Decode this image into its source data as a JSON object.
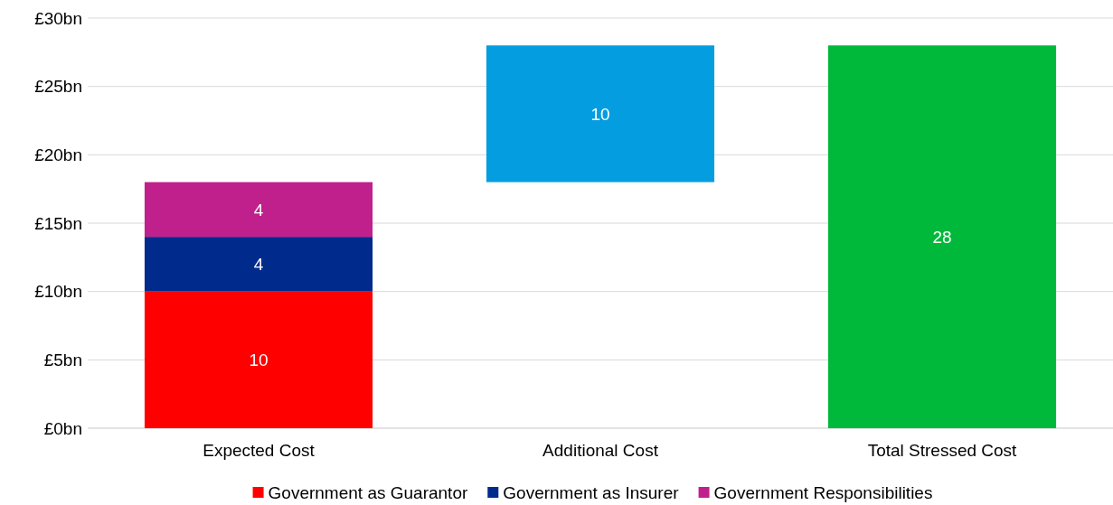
{
  "chart_data": {
    "type": "bar",
    "stacked": true,
    "categories": [
      "Expected Cost",
      "Additional Cost",
      "Total Stressed Cost"
    ],
    "series": [
      {
        "name": "Government as Guarantor",
        "color": "#ff0000",
        "values": [
          10,
          null,
          null
        ]
      },
      {
        "name": "Government as Insurer",
        "color": "#002b8c",
        "values": [
          4,
          null,
          null
        ]
      },
      {
        "name": "Government Responsibilities",
        "color": "#c0208c",
        "values": [
          4,
          null,
          null
        ]
      },
      {
        "colors": [
          null,
          "#049ee0",
          "#00b93a"
        ],
        "values": [
          null,
          10,
          28
        ],
        "base": [
          null,
          18,
          0
        ]
      }
    ],
    "ylim": [
      0,
      30
    ],
    "yticks": [
      {
        "value": 0,
        "label": "£0bn"
      },
      {
        "value": 5,
        "label": "£5bn"
      },
      {
        "value": 10,
        "label": "£10bn"
      },
      {
        "value": 15,
        "label": "£15bn"
      },
      {
        "value": 20,
        "label": "£20bn"
      },
      {
        "value": 25,
        "label": "£25bn"
      },
      {
        "value": 30,
        "label": "£30bn"
      }
    ],
    "grid": "y",
    "legend": "bottom",
    "data_labels": true
  }
}
